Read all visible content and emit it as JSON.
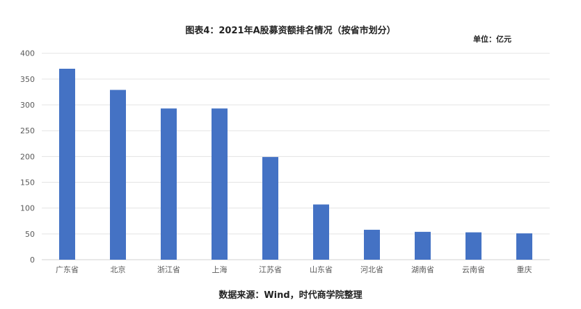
{
  "chart_data": {
    "type": "bar",
    "title": "图表4：2021年A股募资额排名情况（按省市划分）",
    "unit_label": "单位：亿元",
    "source": "数据来源：Wind，时代商学院整理",
    "categories": [
      "广东省",
      "北京",
      "浙江省",
      "上海",
      "江苏省",
      "山东省",
      "河北省",
      "湖南省",
      "云南省",
      "重庆"
    ],
    "values": [
      370,
      329,
      293,
      293,
      199,
      107,
      58,
      54,
      53,
      51
    ],
    "ylim": [
      0,
      400
    ],
    "yticks": [
      0,
      50,
      100,
      150,
      200,
      250,
      300,
      350,
      400
    ],
    "grid": true,
    "bar_color": "#4472C4"
  }
}
